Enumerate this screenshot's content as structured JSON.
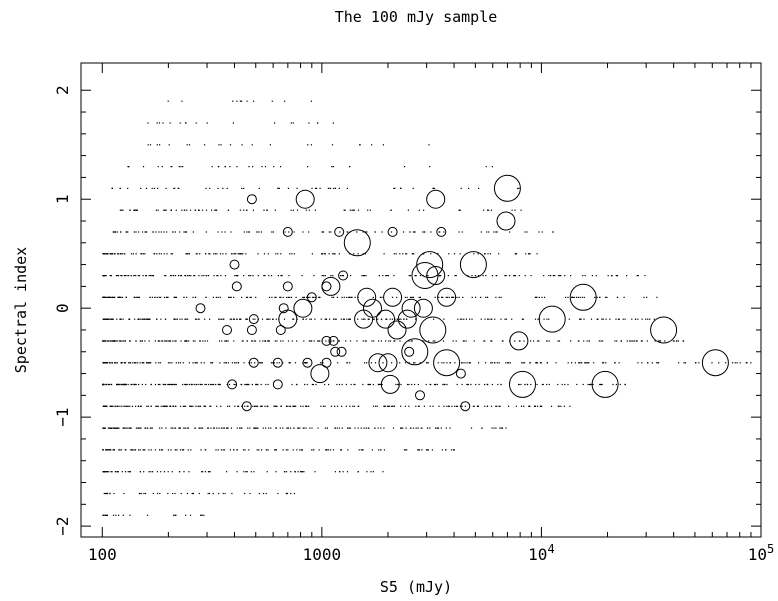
{
  "chart_data": {
    "type": "scatter",
    "title": "The 100 mJy sample",
    "xlabel": "S5 (mJy)",
    "ylabel": "Spectral index",
    "x_scale": "log",
    "xlim": [
      80,
      100000
    ],
    "ylim": [
      -2.1,
      2.25
    ],
    "grid": false,
    "x_ticks": [
      {
        "value": 100,
        "label": "100"
      },
      {
        "value": 1000,
        "label": "1000"
      },
      {
        "value": 10000,
        "label": "10",
        "exp": "4"
      },
      {
        "value": 100000,
        "label": "10",
        "exp": "5"
      }
    ],
    "y_ticks": [
      {
        "value": -2,
        "label": "−2"
      },
      {
        "value": -1,
        "label": "−1"
      },
      {
        "value": 0,
        "label": "0"
      },
      {
        "value": 1,
        "label": "1"
      },
      {
        "value": 2,
        "label": "2"
      }
    ],
    "series": [
      {
        "marker": "dot",
        "description_levels": [
          {
            "y": 1.9,
            "x_range": [
              180,
              900
            ],
            "density": 0.05
          },
          {
            "y": 1.7,
            "x_range": [
              150,
              1500
            ],
            "density": 0.08
          },
          {
            "y": 1.5,
            "x_range": [
              150,
              3500
            ],
            "density": 0.1
          },
          {
            "y": 1.3,
            "x_range": [
              130,
              8000
            ],
            "density": 0.15
          },
          {
            "y": 1.1,
            "x_range": [
              110,
              8000
            ],
            "density": 0.25
          },
          {
            "y": 0.9,
            "x_range": [
              120,
              9000
            ],
            "density": 0.35
          },
          {
            "y": 0.7,
            "x_range": [
              110,
              12000
            ],
            "density": 0.45
          },
          {
            "y": 0.5,
            "x_range": [
              100,
              10000
            ],
            "density": 0.6
          },
          {
            "y": 0.3,
            "x_range": [
              100,
              30000
            ],
            "density": 0.75
          },
          {
            "y": 0.1,
            "x_range": [
              100,
              40000
            ],
            "density": 0.85
          },
          {
            "y": -0.1,
            "x_range": [
              100,
              40000
            ],
            "density": 0.95
          },
          {
            "y": -0.3,
            "x_range": [
              100,
              60000
            ],
            "density": 1.0
          },
          {
            "y": -0.5,
            "x_range": [
              100,
              90000
            ],
            "density": 1.0
          },
          {
            "y": -0.7,
            "x_range": [
              100,
              25000
            ],
            "density": 1.0
          },
          {
            "y": -0.9,
            "x_range": [
              100,
              15000
            ],
            "density": 0.95
          },
          {
            "y": -1.1,
            "x_range": [
              100,
              7000
            ],
            "density": 0.85
          },
          {
            "y": -1.3,
            "x_range": [
              100,
              4000
            ],
            "density": 0.6
          },
          {
            "y": -1.5,
            "x_range": [
              100,
              2000
            ],
            "density": 0.35
          },
          {
            "y": -1.7,
            "x_range": [
              100,
              800
            ],
            "density": 0.2
          },
          {
            "y": -1.9,
            "x_range": [
              100,
              300
            ],
            "density": 0.1
          }
        ]
      },
      {
        "marker": "open-circle",
        "points": [
          {
            "x": 480,
            "y": 1.0,
            "size": 1
          },
          {
            "x": 840,
            "y": 1.0,
            "size": 2
          },
          {
            "x": 3300,
            "y": 1.0,
            "size": 2
          },
          {
            "x": 7000,
            "y": 1.1,
            "size": 3
          },
          {
            "x": 700,
            "y": 0.7,
            "size": 1
          },
          {
            "x": 1200,
            "y": 0.7,
            "size": 1
          },
          {
            "x": 2100,
            "y": 0.7,
            "size": 1
          },
          {
            "x": 3500,
            "y": 0.7,
            "size": 1
          },
          {
            "x": 6900,
            "y": 0.8,
            "size": 2
          },
          {
            "x": 1450,
            "y": 0.6,
            "size": 3
          },
          {
            "x": 400,
            "y": 0.4,
            "size": 1
          },
          {
            "x": 3100,
            "y": 0.4,
            "size": 3
          },
          {
            "x": 4900,
            "y": 0.4,
            "size": 3
          },
          {
            "x": 1250,
            "y": 0.3,
            "size": 1
          },
          {
            "x": 2950,
            "y": 0.3,
            "size": 3
          },
          {
            "x": 3300,
            "y": 0.3,
            "size": 2
          },
          {
            "x": 410,
            "y": 0.2,
            "size": 1
          },
          {
            "x": 700,
            "y": 0.2,
            "size": 1
          },
          {
            "x": 1050,
            "y": 0.2,
            "size": 1
          },
          {
            "x": 1100,
            "y": 0.2,
            "size": 2
          },
          {
            "x": 900,
            "y": 0.1,
            "size": 1
          },
          {
            "x": 1600,
            "y": 0.1,
            "size": 2
          },
          {
            "x": 2100,
            "y": 0.1,
            "size": 2
          },
          {
            "x": 3700,
            "y": 0.1,
            "size": 2
          },
          {
            "x": 15500,
            "y": 0.1,
            "size": 3
          },
          {
            "x": 280,
            "y": 0.0,
            "size": 1
          },
          {
            "x": 670,
            "y": 0.0,
            "size": 1
          },
          {
            "x": 820,
            "y": 0.0,
            "size": 2
          },
          {
            "x": 1700,
            "y": 0.0,
            "size": 2
          },
          {
            "x": 2550,
            "y": 0.0,
            "size": 2
          },
          {
            "x": 2900,
            "y": 0.0,
            "size": 2
          },
          {
            "x": 490,
            "y": -0.1,
            "size": 1
          },
          {
            "x": 700,
            "y": -0.1,
            "size": 2
          },
          {
            "x": 1550,
            "y": -0.1,
            "size": 2
          },
          {
            "x": 1950,
            "y": -0.1,
            "size": 2
          },
          {
            "x": 2450,
            "y": -0.1,
            "size": 2
          },
          {
            "x": 11200,
            "y": -0.1,
            "size": 3
          },
          {
            "x": 370,
            "y": -0.2,
            "size": 1
          },
          {
            "x": 480,
            "y": -0.2,
            "size": 1
          },
          {
            "x": 650,
            "y": -0.2,
            "size": 1
          },
          {
            "x": 2200,
            "y": -0.2,
            "size": 2
          },
          {
            "x": 3200,
            "y": -0.2,
            "size": 3
          },
          {
            "x": 36000,
            "y": -0.2,
            "size": 3
          },
          {
            "x": 1050,
            "y": -0.3,
            "size": 1
          },
          {
            "x": 1130,
            "y": -0.3,
            "size": 1
          },
          {
            "x": 7900,
            "y": -0.3,
            "size": 2
          },
          {
            "x": 1150,
            "y": -0.4,
            "size": 1
          },
          {
            "x": 1230,
            "y": -0.4,
            "size": 1
          },
          {
            "x": 2500,
            "y": -0.4,
            "size": 1
          },
          {
            "x": 2650,
            "y": -0.4,
            "size": 3
          },
          {
            "x": 490,
            "y": -0.5,
            "size": 1
          },
          {
            "x": 630,
            "y": -0.5,
            "size": 1
          },
          {
            "x": 860,
            "y": -0.5,
            "size": 1
          },
          {
            "x": 1050,
            "y": -0.5,
            "size": 1
          },
          {
            "x": 1800,
            "y": -0.5,
            "size": 2
          },
          {
            "x": 2000,
            "y": -0.5,
            "size": 2
          },
          {
            "x": 3700,
            "y": -0.5,
            "size": 3
          },
          {
            "x": 62000,
            "y": -0.5,
            "size": 3
          },
          {
            "x": 980,
            "y": -0.6,
            "size": 2
          },
          {
            "x": 4300,
            "y": -0.6,
            "size": 1
          },
          {
            "x": 390,
            "y": -0.7,
            "size": 1
          },
          {
            "x": 630,
            "y": -0.7,
            "size": 1
          },
          {
            "x": 2050,
            "y": -0.7,
            "size": 2
          },
          {
            "x": 8200,
            "y": -0.7,
            "size": 3
          },
          {
            "x": 19500,
            "y": -0.7,
            "size": 3
          },
          {
            "x": 2800,
            "y": -0.8,
            "size": 1
          },
          {
            "x": 455,
            "y": -0.9,
            "size": 1
          },
          {
            "x": 4500,
            "y": -0.9,
            "size": 1
          }
        ]
      }
    ]
  }
}
